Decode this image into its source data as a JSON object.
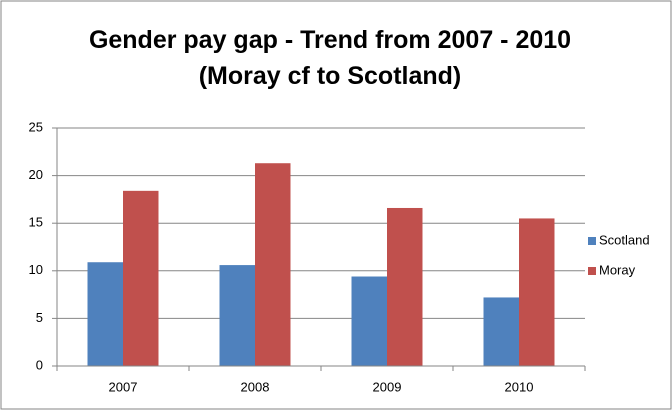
{
  "chart_data": {
    "type": "bar",
    "title": "Gender pay gap - Trend from 2007 - 2010 (Moray cf to Scotland)",
    "categories": [
      "2007",
      "2008",
      "2009",
      "2010"
    ],
    "series": [
      {
        "name": "Scotland",
        "color": "#4f81bd",
        "values": [
          10.9,
          10.6,
          9.4,
          7.2
        ]
      },
      {
        "name": "Moray",
        "color": "#c0504d",
        "values": [
          18.4,
          21.3,
          16.6,
          15.5
        ]
      }
    ],
    "ylim": [
      0,
      25
    ],
    "yticks": [
      0,
      5,
      10,
      15,
      20,
      25
    ],
    "grid": true,
    "legend": "right"
  }
}
